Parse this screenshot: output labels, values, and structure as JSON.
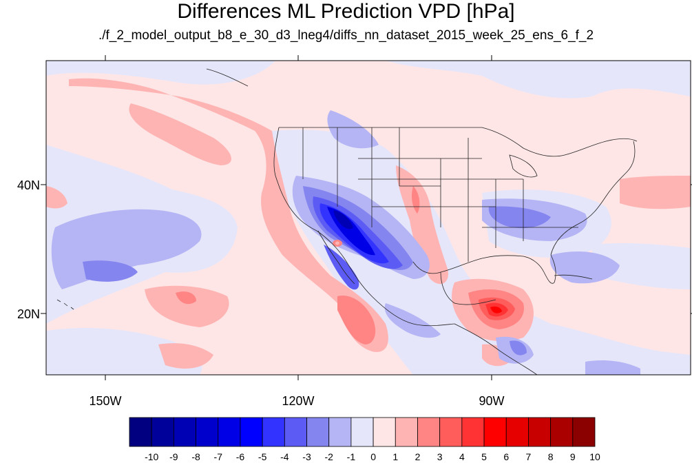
{
  "title": "Differences ML Prediction VPD [hPa]",
  "subtitle": "./f_2_model_output_b8_e_30_d3_lneg4/diffs_nn_dataset_2015_week_25_ens_6_f_2",
  "axes": {
    "lon_labels": [
      "150W",
      "120W",
      "90W"
    ],
    "lat_labels": [
      "40N",
      "20N"
    ]
  },
  "colorbar": {
    "labels": [
      "-10",
      "-9",
      "-8",
      "-7",
      "-6",
      "-5",
      "-4",
      "-3",
      "-2",
      "-1",
      "0",
      "1",
      "2",
      "3",
      "4",
      "5",
      "6",
      "7",
      "8",
      "9",
      "10"
    ],
    "colors": [
      "#000080",
      "#00009a",
      "#0000b4",
      "#0000cd",
      "#0000e6",
      "#0000ff",
      "#3333ff",
      "#5c5cf5",
      "#8585f0",
      "#b5b5f5",
      "#e6e6fa",
      "#ffe6e6",
      "#ffb4b4",
      "#ff8585",
      "#ff5c5c",
      "#ff3333",
      "#ff0000",
      "#e60000",
      "#c80000",
      "#aa0000",
      "#8b0000"
    ]
  }
}
